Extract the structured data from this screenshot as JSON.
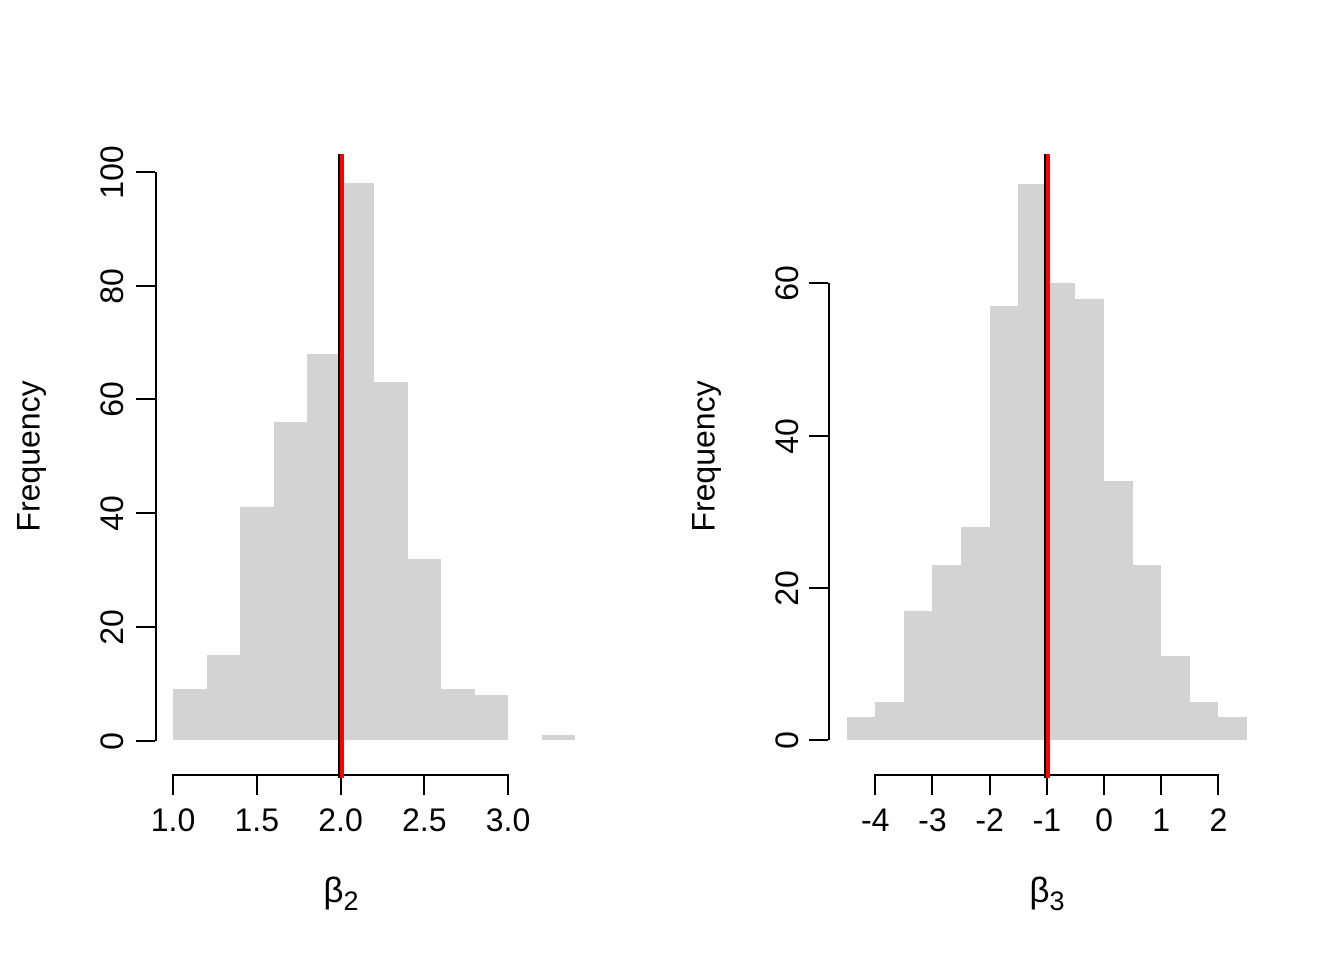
{
  "figure": {
    "background_color": "#ffffff",
    "bar_fill_color": "#d3d3d3",
    "axis_color": "#000000",
    "reference_line_color": "#ff0000",
    "reference_line_edge_color": "#000000"
  },
  "chart_data": [
    {
      "type": "bar",
      "variant": "histogram",
      "title": "",
      "xlabel": "β2",
      "xlabel_base": "β",
      "xlabel_subscript": "2",
      "ylabel": "Frequency",
      "bin_start": 1.0,
      "bin_width": 0.2,
      "bin_edges": [
        1.0,
        1.2,
        1.4,
        1.6,
        1.8,
        2.0,
        2.2,
        2.4,
        2.6,
        2.8,
        3.0,
        3.2,
        3.4
      ],
      "counts": [
        9,
        15,
        41,
        56,
        68,
        98,
        63,
        32,
        9,
        8,
        0,
        1
      ],
      "x_ticks": [
        1.0,
        1.5,
        2.0,
        2.5,
        3.0
      ],
      "x_tick_labels": [
        "1.0",
        "1.5",
        "2.0",
        "2.5",
        "3.0"
      ],
      "y_ticks": [
        0,
        20,
        40,
        60,
        80,
        100
      ],
      "y_tick_labels": [
        "0",
        "20",
        "40",
        "60",
        "80",
        "100"
      ],
      "xlim": [
        1.0,
        3.0
      ],
      "ylim": [
        0,
        100
      ],
      "grid": false,
      "legend": "none",
      "vline_x": 2.0,
      "vline_color": "#ff0000"
    },
    {
      "type": "bar",
      "variant": "histogram",
      "title": "",
      "xlabel": "β3",
      "xlabel_base": "β",
      "xlabel_subscript": "3",
      "ylabel": "Frequency",
      "bin_start": -4.5,
      "bin_width": 0.5,
      "bin_edges": [
        -4.5,
        -4.0,
        -3.5,
        -3.0,
        -2.5,
        -2.0,
        -1.5,
        -1.0,
        -0.5,
        0.0,
        0.5,
        1.0,
        1.5,
        2.0,
        2.5
      ],
      "counts": [
        3,
        5,
        17,
        23,
        28,
        57,
        73,
        60,
        58,
        34,
        23,
        11,
        5,
        3
      ],
      "x_ticks": [
        -4,
        -3,
        -2,
        -1,
        0,
        1,
        2
      ],
      "x_tick_labels": [
        "-4",
        "-3",
        "-2",
        "-1",
        "0",
        "1",
        "2"
      ],
      "y_ticks": [
        0,
        20,
        40,
        60
      ],
      "y_tick_labels": [
        "0",
        "20",
        "40",
        "60"
      ],
      "xlim": [
        -4,
        2
      ],
      "ylim": [
        0,
        60
      ],
      "grid": false,
      "legend": "none",
      "vline_x": -1.0,
      "vline_color": "#ff0000"
    }
  ]
}
